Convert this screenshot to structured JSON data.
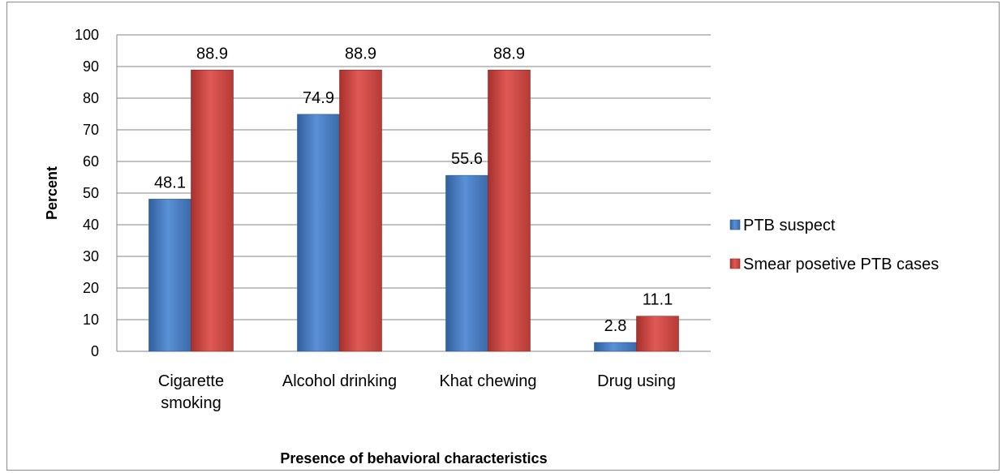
{
  "chart_data": {
    "type": "bar",
    "categories": [
      [
        "Cigarette",
        "smoking"
      ],
      [
        "Alcohol drinking"
      ],
      [
        "Khat chewing"
      ],
      [
        "Drug using"
      ]
    ],
    "series": [
      {
        "name": "PTB suspect",
        "values": [
          48.1,
          74.9,
          55.6,
          2.8
        ],
        "labels": [
          "48.1",
          "74.9",
          "55.6",
          "2.8"
        ],
        "color": "#4a7ebb"
      },
      {
        "name": "Smear posetive PTB cases",
        "values": [
          88.9,
          88.9,
          88.9,
          11.1
        ],
        "labels": [
          "88.9",
          "88.9",
          "88.9",
          "11.1"
        ],
        "color": "#c0504d"
      }
    ],
    "xlabel": "Presence of behavioral characteristics",
    "ylabel": "Percent",
    "ylim": [
      0,
      100
    ],
    "yticks": [
      "0",
      "10",
      "20",
      "30",
      "40",
      "50",
      "60",
      "70",
      "80",
      "90",
      "100"
    ],
    "grid": true,
    "legend_position": "right"
  }
}
